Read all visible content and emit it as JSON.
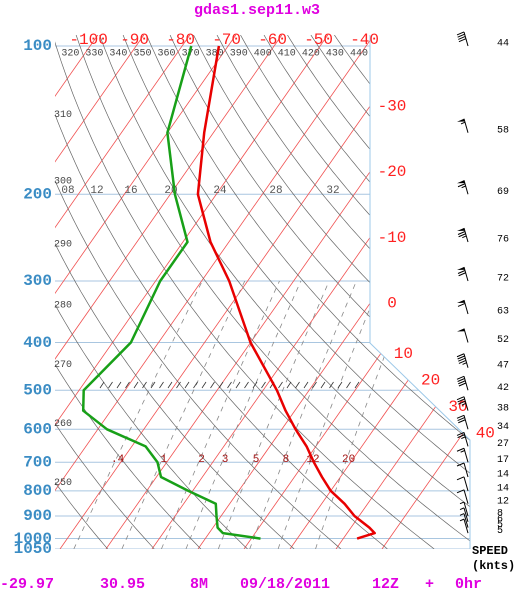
{
  "chart_data": {
    "type": "skewt",
    "title": "gdas1.sep11.w3",
    "ylim": [
      1050,
      95
    ],
    "log_y": true,
    "yticks": [
      100,
      200,
      300,
      400,
      500,
      600,
      700,
      800,
      900,
      1000,
      1050
    ],
    "temp_ticks": [
      -100,
      -90,
      -80,
      -70,
      -60,
      -50,
      -40,
      -30,
      -20,
      -10,
      0,
      10,
      20,
      30,
      40
    ],
    "theta_ticks": [
      250,
      260,
      270,
      280,
      290,
      300,
      310,
      320,
      330,
      340,
      350,
      360,
      370,
      380,
      390,
      400,
      410,
      420,
      430,
      440
    ],
    "mixing_ratio_ticks": [
      {
        "value": 0.4,
        "label": ".4"
      },
      1,
      2,
      3,
      5,
      8,
      12,
      20
    ],
    "moist_adiabat_labels": [
      "08",
      "12",
      "16",
      "20",
      "24",
      "28",
      "32"
    ],
    "pressure": [
      100,
      150,
      200,
      250,
      300,
      400,
      500,
      550,
      600,
      650,
      700,
      750,
      800,
      850,
      900,
      950,
      975,
      1000
    ],
    "series": [
      {
        "color": "#e80000",
        "values": [
          -72,
          -62,
          -54,
          -44,
          -34,
          -20,
          -7,
          -2,
          3,
          8,
          12,
          16,
          20,
          25,
          29,
          34,
          36,
          33
        ]
      },
      {
        "color": "#18a018",
        "values": [
          -78,
          -70,
          -59,
          -49,
          -49,
          -46,
          -49,
          -46,
          -38,
          -27,
          -22,
          -19,
          -11,
          -3,
          -1,
          1,
          3,
          12
        ]
      }
    ],
    "wind": {
      "pressure": [
        100,
        150,
        200,
        250,
        300,
        350,
        400,
        450,
        500,
        550,
        600,
        650,
        700,
        750,
        800,
        850,
        900,
        925,
        950,
        975
      ],
      "values": [
        44,
        58,
        69,
        76,
        72,
        63,
        52,
        47,
        42,
        38,
        34,
        27,
        17,
        14,
        14,
        12,
        8,
        6,
        5,
        5
      ],
      "label": "SPEED",
      "unit": "(knts)"
    },
    "footer": [
      "-29.97",
      "30.95",
      "8M",
      "09/18/2011",
      "12Z",
      "+",
      "0hr"
    ]
  }
}
